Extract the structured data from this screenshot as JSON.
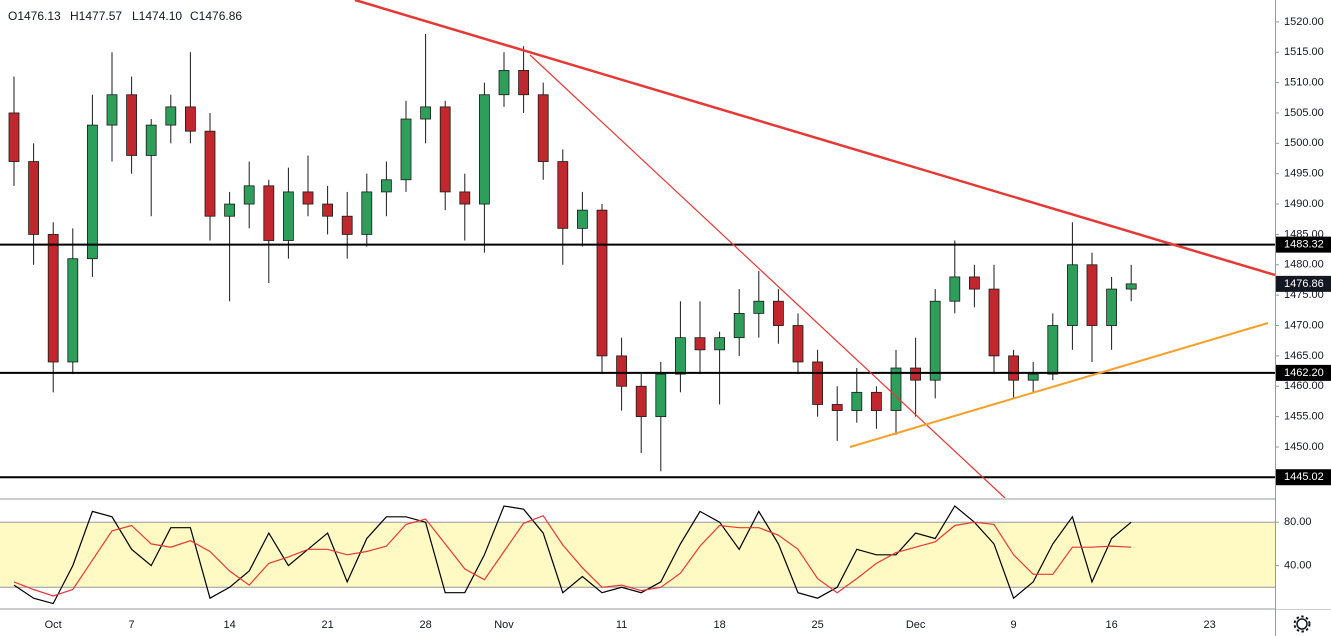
{
  "chart_data": [
    {
      "type": "candlestick",
      "legend_ohlc": [
        "O1476.13",
        "H1477.57",
        "L1474.10",
        "C1476.86"
      ],
      "categories": [
        null,
        null,
        "Oct",
        null,
        null,
        null,
        "7",
        null,
        null,
        null,
        null,
        "14",
        null,
        null,
        null,
        null,
        "21",
        null,
        null,
        null,
        null,
        "28",
        null,
        null,
        null,
        "Nov",
        null,
        null,
        null,
        null,
        null,
        "11",
        null,
        null,
        null,
        null,
        "18",
        null,
        null,
        null,
        null,
        "25",
        null,
        null,
        null,
        null,
        "Dec",
        null,
        null,
        null,
        null,
        "9",
        null,
        null,
        null,
        null,
        "16",
        null,
        null,
        null,
        null,
        "23"
      ],
      "open": [
        1505,
        1497,
        1485,
        1464,
        1481,
        1503,
        1508,
        1498,
        1503,
        1506,
        1502,
        1488,
        1490,
        1493,
        1484,
        1492,
        1490,
        1488,
        1485,
        1492,
        1494,
        1504,
        1506,
        1492,
        1490,
        1508,
        1512,
        1508,
        1497,
        1486,
        1489,
        1465,
        1460,
        1455,
        1462,
        1468,
        1466,
        1468,
        1472,
        1474,
        1470,
        1464,
        1457,
        1456,
        1459,
        1456,
        1463,
        1461,
        1474,
        1478,
        1476,
        1465,
        1461,
        1462,
        1470,
        1480,
        1470,
        1476,
        null,
        null,
        null,
        null
      ],
      "high": [
        1511,
        1500,
        1487,
        1486,
        1508,
        1515,
        1511,
        1504,
        1508,
        1515,
        1505,
        1492,
        1497,
        1494,
        1496,
        1498,
        1493,
        1492,
        1495,
        1497,
        1507,
        1518,
        1507,
        1495,
        1510,
        1515,
        1516,
        1510,
        1499,
        1492,
        1490,
        1468,
        1462,
        1464,
        1474,
        1474,
        1469,
        1476,
        1479,
        1476,
        1472,
        1466,
        1460,
        1463,
        1460,
        1466,
        1468,
        1476,
        1484,
        1480,
        1480,
        1466,
        1464,
        1472,
        1487,
        1482,
        1478,
        1480,
        null,
        null,
        null,
        null
      ],
      "low": [
        1493,
        1480,
        1459,
        1462,
        1478,
        1497,
        1495,
        1488,
        1500,
        1500,
        1484,
        1474,
        1486,
        1477,
        1481,
        1488,
        1485,
        1481,
        1483,
        1488,
        1492,
        1500,
        1489,
        1484,
        1482,
        1506,
        1505,
        1494,
        1480,
        1483,
        1462,
        1456,
        1449,
        1446,
        1459,
        1462,
        1457,
        1465,
        1468,
        1467,
        1462,
        1455,
        1451,
        1454,
        1453,
        1452,
        1455,
        1458,
        1472,
        1473,
        1462,
        1458,
        1459,
        1461,
        1466,
        1464,
        1466,
        1474,
        null,
        null,
        null,
        null
      ],
      "close": [
        1497,
        1485,
        1464,
        1481,
        1503,
        1508,
        1498,
        1503,
        1506,
        1502,
        1488,
        1490,
        1493,
        1484,
        1492,
        1490,
        1488,
        1485,
        1492,
        1494,
        1504,
        1506,
        1492,
        1490,
        1508,
        1512,
        1508,
        1497,
        1486,
        1489,
        1465,
        1460,
        1455,
        1462,
        1468,
        1466,
        1468,
        1472,
        1474,
        1470,
        1464,
        1457,
        1456,
        1459,
        1456,
        1463,
        1461,
        1474,
        1478,
        1476,
        1465,
        1461,
        1462,
        1470,
        1480,
        1470,
        1476,
        1476.86,
        null,
        null,
        null,
        null
      ],
      "up_color": "#2e9e5b",
      "down_color": "#c0282d",
      "wick_color": "#1b1b1b",
      "ylim": [
        1441.6,
        1523.6
      ],
      "yticks": [
        {
          "value": 1450,
          "label": "1450.00"
        },
        {
          "value": 1455,
          "label": "1455.00"
        },
        {
          "value": 1460,
          "label": "1460.00"
        },
        {
          "value": 1465,
          "label": "1465.00"
        },
        {
          "value": 1470,
          "label": "1470.00"
        },
        {
          "value": 1475,
          "label": "1475.00"
        },
        {
          "value": 1480,
          "label": "1480.00"
        },
        {
          "value": 1485,
          "label": "1485.00"
        },
        {
          "value": 1490,
          "label": "1490.00"
        },
        {
          "value": 1495,
          "label": "1495.00"
        },
        {
          "value": 1500,
          "label": "1500.00"
        },
        {
          "value": 1505,
          "label": "1505.00"
        },
        {
          "value": 1510,
          "label": "1510.00"
        },
        {
          "value": 1515,
          "label": "1515.00"
        },
        {
          "value": 1520,
          "label": "1520.00"
        }
      ],
      "levels": [
        1483.32,
        {
          "value": 1462.2,
          "label": "1462.20"
        },
        1445.02
      ],
      "level_color": "#000000",
      "last_price_color": "#131722",
      "grid": false
    },
    {
      "type": "line",
      "series": [
        {
          "color": "#000000",
          "values": [
            22,
            10,
            5,
            40,
            90,
            85,
            55,
            40,
            75,
            75,
            10,
            20,
            35,
            70,
            40,
            55,
            70,
            25,
            65,
            85,
            85,
            80,
            15,
            15,
            50,
            95,
            92,
            70,
            15,
            30,
            15,
            20,
            15,
            25,
            60,
            90,
            80,
            55,
            90,
            60,
            15,
            10,
            20,
            55,
            50,
            50,
            70,
            65,
            95,
            80,
            60,
            10,
            25,
            60,
            85,
            25,
            65,
            80,
            null,
            null,
            null,
            null
          ]
        },
        {
          "color": "#e53935",
          "values": [
            25,
            18,
            12,
            18,
            45,
            72,
            77,
            60,
            57,
            63,
            53,
            35,
            22,
            42,
            48,
            55,
            55,
            50,
            53,
            58,
            78,
            83,
            60,
            37,
            27,
            53,
            79,
            86,
            59,
            38,
            20,
            22,
            17,
            20,
            33,
            58,
            77,
            75,
            75,
            68,
            55,
            28,
            15,
            28,
            42,
            52,
            57,
            62,
            77,
            80,
            78,
            50,
            32,
            32,
            57,
            57,
            58,
            57,
            null,
            null,
            null,
            null
          ]
        }
      ],
      "ylim": [
        0,
        100.5
      ],
      "yticks": [
        {
          "value": 40,
          "label": "40.00"
        },
        {
          "value": 80,
          "label": "80.00"
        }
      ],
      "band": [
        20,
        80
      ],
      "band_color": "#fff9c4"
    }
  ]
}
